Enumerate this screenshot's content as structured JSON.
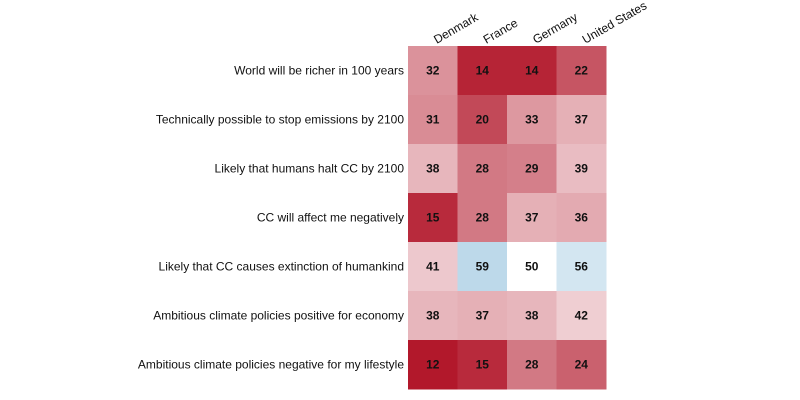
{
  "chart_data": {
    "type": "heatmap",
    "title": "",
    "xlabel": "",
    "ylabel": "",
    "x_categories": [
      "Denmark",
      "France",
      "Germany",
      "United States"
    ],
    "y_categories": [
      "World will be richer in 100 years",
      "Technically possible to stop emissions by 2100",
      "Likely that humans halt CC by 2100",
      "CC will affect me negatively",
      "Likely that CC causes extinction of humankind",
      "Ambitious climate policies positive for economy",
      "Ambitious climate policies negative for my lifestyle"
    ],
    "values": [
      [
        32,
        14,
        14,
        22
      ],
      [
        31,
        20,
        33,
        37
      ],
      [
        38,
        28,
        29,
        39
      ],
      [
        15,
        28,
        37,
        36
      ],
      [
        41,
        59,
        50,
        56
      ],
      [
        38,
        37,
        38,
        42
      ],
      [
        12,
        15,
        28,
        24
      ]
    ],
    "color_scale": {
      "type": "diverging",
      "low_color": "#b2182b",
      "mid_color": "#ffffff",
      "high_color": "#4393c3",
      "midpoint": 50
    },
    "cell_labels": true,
    "grid": false,
    "legend": "none"
  }
}
